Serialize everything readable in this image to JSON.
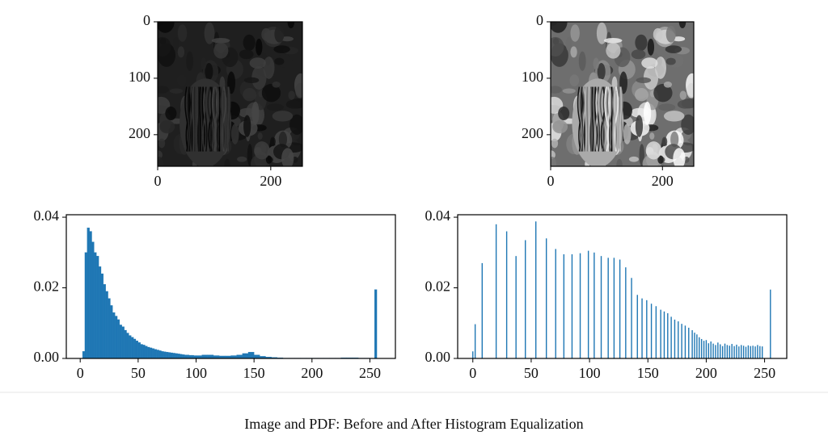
{
  "chart_data": [
    {
      "type": "image",
      "xlim": [
        0,
        256
      ],
      "ylim": [
        256,
        0
      ],
      "xticks": [
        0,
        200
      ],
      "yticks": [
        0,
        100,
        200
      ]
    },
    {
      "type": "image",
      "xlim": [
        0,
        256
      ],
      "ylim": [
        256,
        0
      ],
      "xticks": [
        0,
        200
      ],
      "yticks": [
        0,
        100,
        200
      ]
    },
    {
      "type": "histogram",
      "color": "#1f77b4",
      "xlim": [
        -12,
        272
      ],
      "ylim": [
        0,
        0.0407
      ],
      "xticks": [
        0,
        50,
        100,
        150,
        200,
        250
      ],
      "yticks": [
        {
          "value": 0,
          "label": "0.00"
        },
        0.02,
        0.04
      ],
      "bins": [
        0,
        2,
        4,
        6,
        8,
        10,
        12,
        14,
        16,
        18,
        20,
        22,
        24,
        26,
        28,
        30,
        32,
        34,
        36,
        38,
        40,
        42,
        44,
        46,
        48,
        50,
        52,
        54,
        56,
        58,
        60,
        62,
        64,
        66,
        68,
        70,
        72,
        74,
        76,
        78,
        80,
        82,
        84,
        86,
        88,
        90,
        92,
        94,
        96,
        98,
        100,
        105,
        110,
        115,
        120,
        125,
        130,
        135,
        140,
        145,
        150,
        155,
        160,
        165,
        170,
        175,
        180,
        185,
        190,
        195,
        200,
        205,
        210,
        215,
        220,
        225,
        230,
        235,
        240,
        245,
        250,
        254,
        256
      ],
      "values": [
        0,
        0.002,
        0.03,
        0.037,
        0.036,
        0.033,
        0.03,
        0.029,
        0.026,
        0.024,
        0.021,
        0.019,
        0.017,
        0.015,
        0.013,
        0.012,
        0.011,
        0.0095,
        0.009,
        0.008,
        0.0072,
        0.0065,
        0.006,
        0.0055,
        0.005,
        0.0045,
        0.004,
        0.0038,
        0.0035,
        0.0032,
        0.003,
        0.0028,
        0.0026,
        0.0024,
        0.0022,
        0.002,
        0.0019,
        0.0018,
        0.0017,
        0.0016,
        0.0015,
        0.0014,
        0.0013,
        0.0012,
        0.0011,
        0.001,
        0.001,
        0.0009,
        0.0009,
        0.0008,
        0.0008,
        0.001,
        0.001,
        0.0008,
        0.0007,
        0.0007,
        0.0008,
        0.001,
        0.0014,
        0.0018,
        0.001,
        0.0006,
        0.0004,
        0.0003,
        0.0002,
        0.0001,
        0.0001,
        0.0001,
        0.0001,
        0.0001,
        0.0001,
        0.0001,
        0.0001,
        0.0001,
        0.0001,
        0.0002,
        0.0002,
        0.0002,
        0.0001,
        0.0001,
        0,
        0.0195
      ]
    },
    {
      "type": "bar",
      "color": "#1f77b4",
      "xlim": [
        -13,
        269
      ],
      "ylim": [
        0,
        0.0407
      ],
      "xticks": [
        0,
        50,
        100,
        150,
        200,
        250
      ],
      "yticks": [
        {
          "value": 0,
          "label": "0.00"
        },
        0.02,
        0.04
      ],
      "x": [
        0,
        2,
        8,
        20,
        29,
        37,
        45,
        54,
        63,
        71,
        78,
        85,
        92,
        99,
        104,
        110,
        116,
        121,
        126,
        131,
        136,
        141,
        145,
        149,
        153,
        157,
        161,
        164,
        167,
        170,
        173,
        176,
        179,
        182,
        185,
        188,
        190,
        192,
        194,
        196,
        198,
        200,
        202,
        204,
        206,
        208,
        210,
        212,
        214,
        216,
        218,
        220,
        222,
        224,
        226,
        228,
        230,
        232,
        234,
        236,
        238,
        240,
        242,
        244,
        246,
        248,
        255
      ],
      "values": [
        0.002,
        0.0097,
        0.027,
        0.038,
        0.036,
        0.029,
        0.0335,
        0.0388,
        0.034,
        0.031,
        0.0295,
        0.0295,
        0.0298,
        0.0305,
        0.03,
        0.029,
        0.0285,
        0.0285,
        0.028,
        0.0258,
        0.0228,
        0.018,
        0.017,
        0.0165,
        0.0155,
        0.0148,
        0.0138,
        0.0133,
        0.0128,
        0.0118,
        0.011,
        0.0105,
        0.0098,
        0.0093,
        0.0087,
        0.008,
        0.0073,
        0.0068,
        0.006,
        0.0055,
        0.005,
        0.0052,
        0.0043,
        0.0048,
        0.0042,
        0.0038,
        0.0045,
        0.004,
        0.0035,
        0.0042,
        0.0038,
        0.0036,
        0.0041,
        0.0035,
        0.0039,
        0.0034,
        0.0038,
        0.0036,
        0.0033,
        0.0037,
        0.0035,
        0.0036,
        0.0034,
        0.0038,
        0.0035,
        0.0034,
        0.0195
      ]
    }
  ],
  "caption": "Image and PDF: Before and After Histogram Equalization"
}
